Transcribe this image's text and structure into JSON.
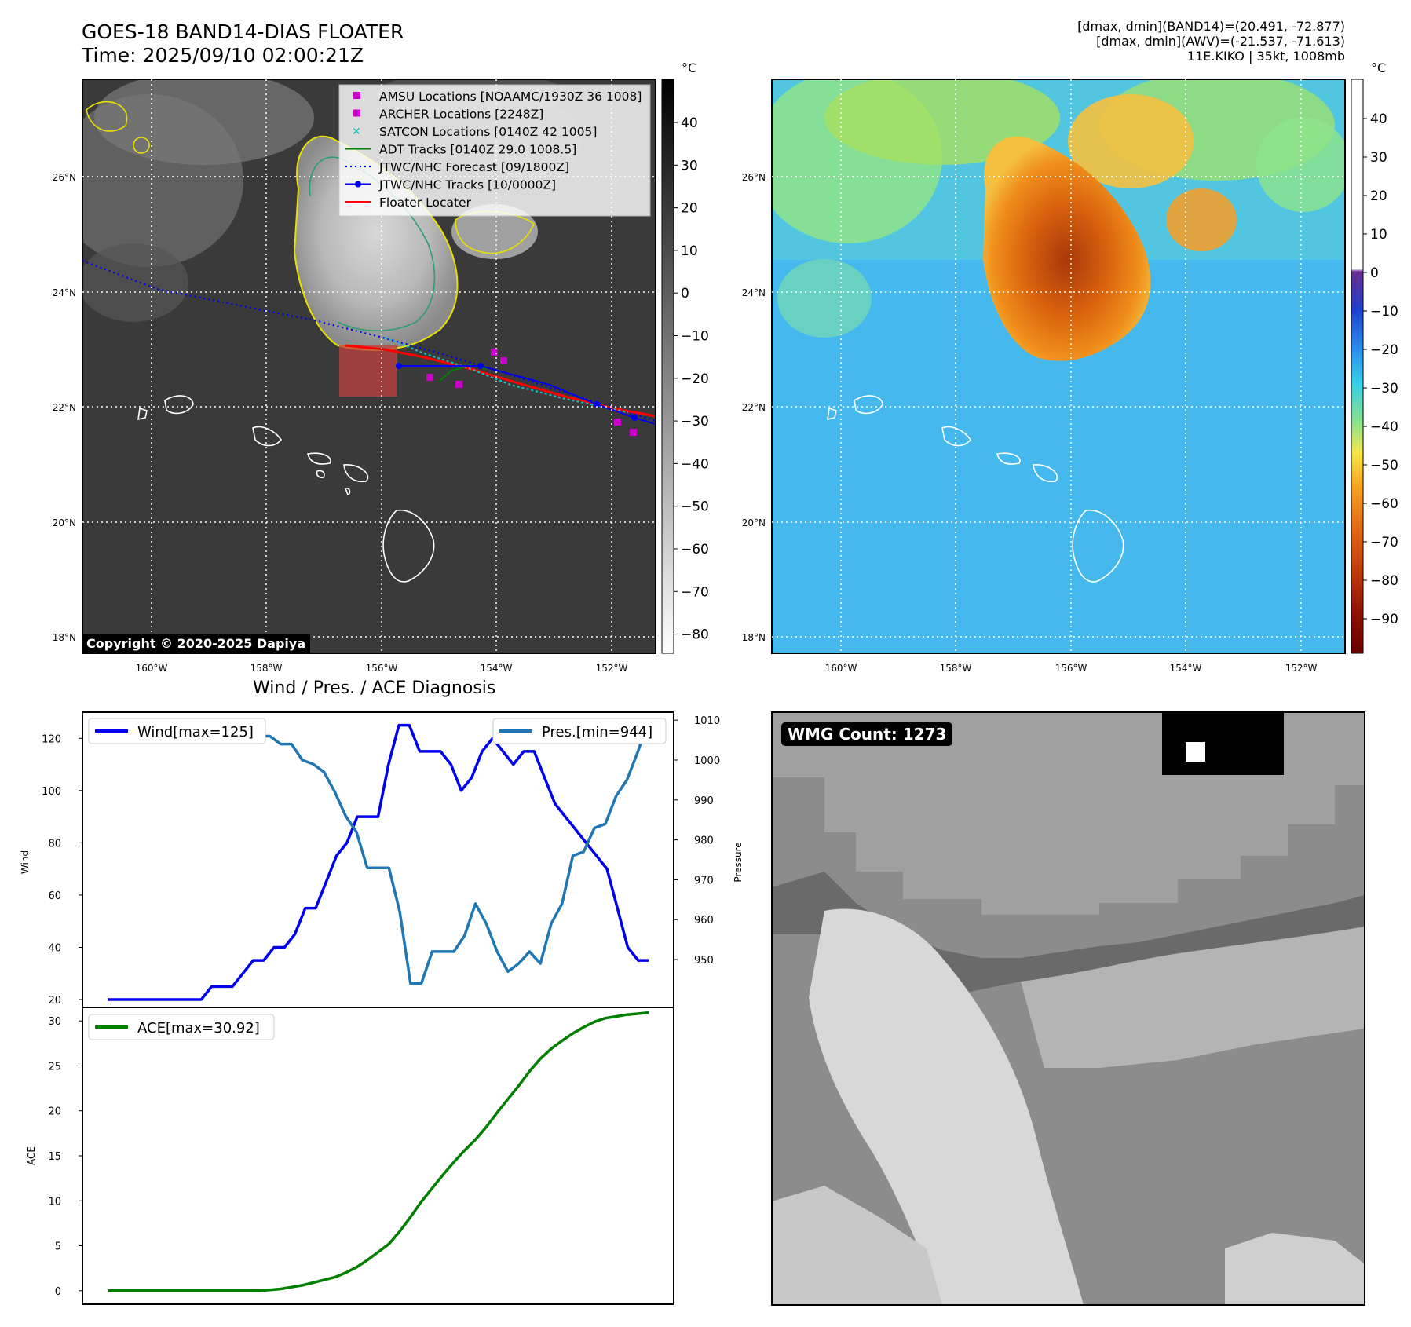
{
  "header": {
    "title_line1": "GOES-18 BAND14-DIAS FLOATER",
    "title_line2": "Time: 2025/09/10 02:00:21Z",
    "info_line1": "[dmax, dmin](BAND14)=(20.491, -72.877)",
    "info_line2": "[dmax, dmin](AWV)=(-21.537, -71.613)",
    "info_line3": "11E.KIKO | 35kt, 1008mb"
  },
  "maps": {
    "lat_labels": [
      "26°N",
      "24°N",
      "22°N",
      "20°N",
      "18°N"
    ],
    "lon_labels": [
      "160°W",
      "158°W",
      "156°W",
      "154°W",
      "152°W"
    ],
    "copyright": "Copyright © 2020-2025 Dapiya",
    "legend": [
      {
        "label": "AMSU Locations [NOAAMC/1930Z 36 1008]",
        "color": "#cc00cc",
        "kind": "square"
      },
      {
        "label": "ARCHER Locations [2248Z]",
        "color": "#cc00cc",
        "kind": "square"
      },
      {
        "label": "SATCON Locations [0140Z 42 1005]",
        "color": "#17bebb",
        "kind": "x"
      },
      {
        "label": "ADT Tracks [0140Z 29.0 1008.5]",
        "color": "#008000",
        "kind": "line"
      },
      {
        "label": "JTWC/NHC Forecast [09/1800Z]",
        "color": "#0000ee",
        "kind": "dotted"
      },
      {
        "label": "JTWC/NHC Tracks [10/0000Z]",
        "color": "#0000ee",
        "kind": "line-dot"
      },
      {
        "label": "Floater Locater",
        "color": "#ff0000",
        "kind": "line"
      }
    ],
    "colorbar1": {
      "unit": "°C",
      "ticks": [
        "40",
        "30",
        "20",
        "10",
        "0",
        "−10",
        "−20",
        "−30",
        "−40",
        "−50",
        "−60",
        "−70",
        "−80"
      ]
    },
    "colorbar2": {
      "unit": "°C",
      "ticks": [
        "40",
        "30",
        "20",
        "10",
        "0",
        "−10",
        "−20",
        "−30",
        "−40",
        "−50",
        "−60",
        "−70",
        "−80",
        "−90"
      ]
    }
  },
  "diagnosis": {
    "title": "Wind / Pres. / ACE Diagnosis",
    "wind_ylabel": "Wind",
    "pres_ylabel": "Pressure",
    "ace_ylabel": "ACE",
    "wmg_label": "WMG Count: 1273"
  },
  "chart_data": [
    {
      "type": "line",
      "title": "Wind / Pres. / ACE Diagnosis",
      "ylabel": "Wind",
      "ylim": [
        17,
        130
      ],
      "yticks": [
        20,
        40,
        60,
        80,
        100,
        120
      ],
      "series": [
        {
          "name": "Wind[max=125]",
          "color": "#0000ee",
          "values": [
            20,
            20,
            20,
            20,
            20,
            20,
            20,
            20,
            20,
            20,
            25,
            25,
            25,
            30,
            35,
            35,
            40,
            40,
            45,
            55,
            55,
            65,
            75,
            80,
            90,
            90,
            90,
            110,
            125,
            125,
            115,
            115,
            115,
            110,
            100,
            105,
            115,
            120,
            115,
            110,
            115,
            115,
            105,
            95,
            90,
            85,
            80,
            75,
            70,
            55,
            40,
            35,
            35
          ]
        }
      ]
    },
    {
      "type": "line",
      "ylabel": "Pressure",
      "ylim": [
        938,
        1012
      ],
      "yticks": [
        950,
        960,
        970,
        980,
        990,
        1000,
        1010
      ],
      "series": [
        {
          "name": "Pres.[min=944]",
          "color": "#1f77b4",
          "values": [
            1010,
            1010,
            1010,
            1010,
            1010,
            1010,
            1010,
            1010,
            1010,
            1010,
            1009,
            1009,
            1009,
            1008,
            1006,
            1006,
            1004,
            1004,
            1000,
            999,
            997,
            992,
            986,
            982,
            973,
            973,
            973,
            962,
            944,
            944,
            952,
            952,
            952,
            956,
            964,
            959,
            952,
            947,
            949,
            952,
            949,
            959,
            964,
            976,
            977,
            983,
            984,
            991,
            995,
            1002,
            1010
          ]
        }
      ]
    },
    {
      "type": "line",
      "ylabel": "ACE",
      "ylim": [
        -1.5,
        31.5
      ],
      "yticks": [
        0,
        5,
        10,
        15,
        20,
        25,
        30
      ],
      "series": [
        {
          "name": "ACE[max=30.92]",
          "color": "#008000",
          "values": [
            0,
            0,
            0,
            0,
            0,
            0,
            0,
            0,
            0,
            0,
            0,
            0,
            0,
            0,
            0,
            0.1,
            0.2,
            0.4,
            0.6,
            0.9,
            1.2,
            1.5,
            2,
            2.6,
            3.4,
            4.3,
            5.2,
            6.6,
            8.2,
            9.9,
            11.4,
            12.9,
            14.3,
            15.6,
            16.8,
            18.2,
            19.8,
            21.3,
            22.8,
            24.4,
            25.8,
            26.9,
            27.8,
            28.6,
            29.3,
            29.9,
            30.3,
            30.5,
            30.7,
            30.8,
            30.92
          ]
        }
      ]
    }
  ]
}
